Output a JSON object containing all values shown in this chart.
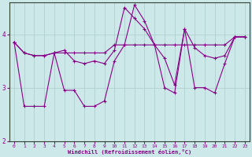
{
  "xlabel": "Windchill (Refroidissement éolien,°C)",
  "background_color": "#cce8e8",
  "line_color": "#880088",
  "grid_color": "#aacccc",
  "xlim": [
    -0.5,
    23.5
  ],
  "ylim": [
    2.0,
    4.6
  ],
  "yticks": [
    2,
    3,
    4
  ],
  "xticks": [
    0,
    1,
    2,
    3,
    4,
    5,
    6,
    7,
    8,
    9,
    10,
    11,
    12,
    13,
    14,
    15,
    16,
    17,
    18,
    19,
    20,
    21,
    22,
    23
  ],
  "series1_x": [
    0,
    1,
    2,
    3,
    4,
    5,
    6,
    7,
    8,
    9,
    10,
    11,
    12,
    13,
    14,
    15,
    16,
    17,
    18,
    19,
    20,
    21,
    22,
    23
  ],
  "series1_y": [
    3.85,
    2.65,
    2.65,
    2.65,
    3.65,
    3.65,
    3.65,
    3.65,
    3.65,
    3.65,
    3.8,
    3.8,
    3.8,
    3.8,
    3.8,
    3.8,
    3.8,
    3.8,
    3.8,
    3.8,
    3.8,
    3.8,
    3.95,
    3.95
  ],
  "series2_x": [
    0,
    1,
    2,
    3,
    4,
    5,
    6,
    7,
    8,
    9,
    10,
    11,
    12,
    13,
    14,
    15,
    16,
    17,
    18,
    19,
    20,
    21,
    22,
    23
  ],
  "series2_y": [
    3.85,
    3.65,
    3.6,
    3.6,
    3.65,
    3.7,
    3.5,
    3.45,
    3.5,
    3.45,
    3.7,
    4.5,
    4.3,
    4.1,
    3.8,
    3.55,
    3.05,
    4.1,
    3.75,
    3.6,
    3.55,
    3.6,
    3.95,
    3.95
  ],
  "series3_x": [
    0,
    1,
    2,
    3,
    4,
    5,
    6,
    7,
    8,
    9,
    10,
    11,
    12,
    13,
    14,
    15,
    16,
    17,
    18,
    19,
    20,
    21,
    22,
    23
  ],
  "series3_y": [
    3.85,
    3.65,
    3.6,
    3.6,
    3.65,
    2.95,
    2.95,
    2.65,
    2.65,
    2.75,
    3.5,
    3.8,
    4.55,
    4.25,
    3.8,
    3.0,
    2.9,
    4.1,
    3.0,
    3.0,
    2.9,
    3.45,
    3.95,
    3.95
  ]
}
